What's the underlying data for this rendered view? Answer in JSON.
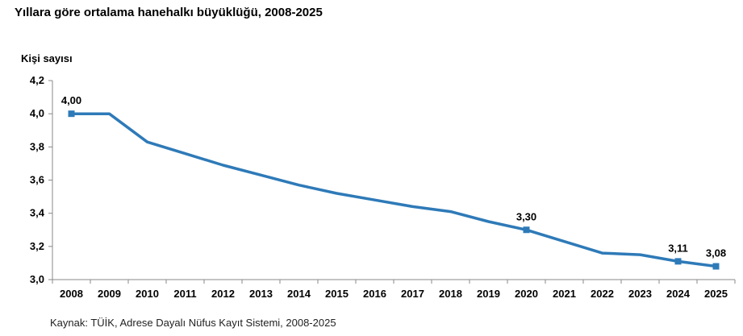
{
  "chart_data": {
    "type": "line",
    "title": "Yıllara göre ortalama hanehalkı büyüklüğü, 2008-2025",
    "ylabel": "Kişi sayısı",
    "xlabel": "",
    "source": "Kaynak: TÜİK, Adrese Dayalı Nüfus Kayıt Sistemi, 2008-2025",
    "ylim": [
      3.0,
      4.2
    ],
    "yticks": [
      "3,0",
      "3,2",
      "3,4",
      "3,6",
      "3,8",
      "4,0",
      "4,2"
    ],
    "categories": [
      "2008",
      "2009",
      "2010",
      "2011",
      "2012",
      "2013",
      "2014",
      "2015",
      "2016",
      "2017",
      "2018",
      "2019",
      "2020",
      "2021",
      "2022",
      "2023",
      "2024",
      "2025"
    ],
    "series": [
      {
        "values": [
          4.0,
          4.0,
          3.83,
          3.76,
          3.69,
          3.63,
          3.57,
          3.52,
          3.48,
          3.44,
          3.41,
          3.35,
          3.3,
          3.23,
          3.16,
          3.15,
          3.11,
          3.08
        ],
        "color": "#2e7ab8"
      }
    ],
    "markers": [
      {
        "category": "2008",
        "value": 4.0,
        "label": "4,00"
      },
      {
        "category": "2020",
        "value": 3.3,
        "label": "3,30"
      },
      {
        "category": "2024",
        "value": 3.11,
        "label": "3,11"
      },
      {
        "category": "2025",
        "value": 3.08,
        "label": "3,08"
      }
    ],
    "grid": false,
    "legend": "none"
  }
}
